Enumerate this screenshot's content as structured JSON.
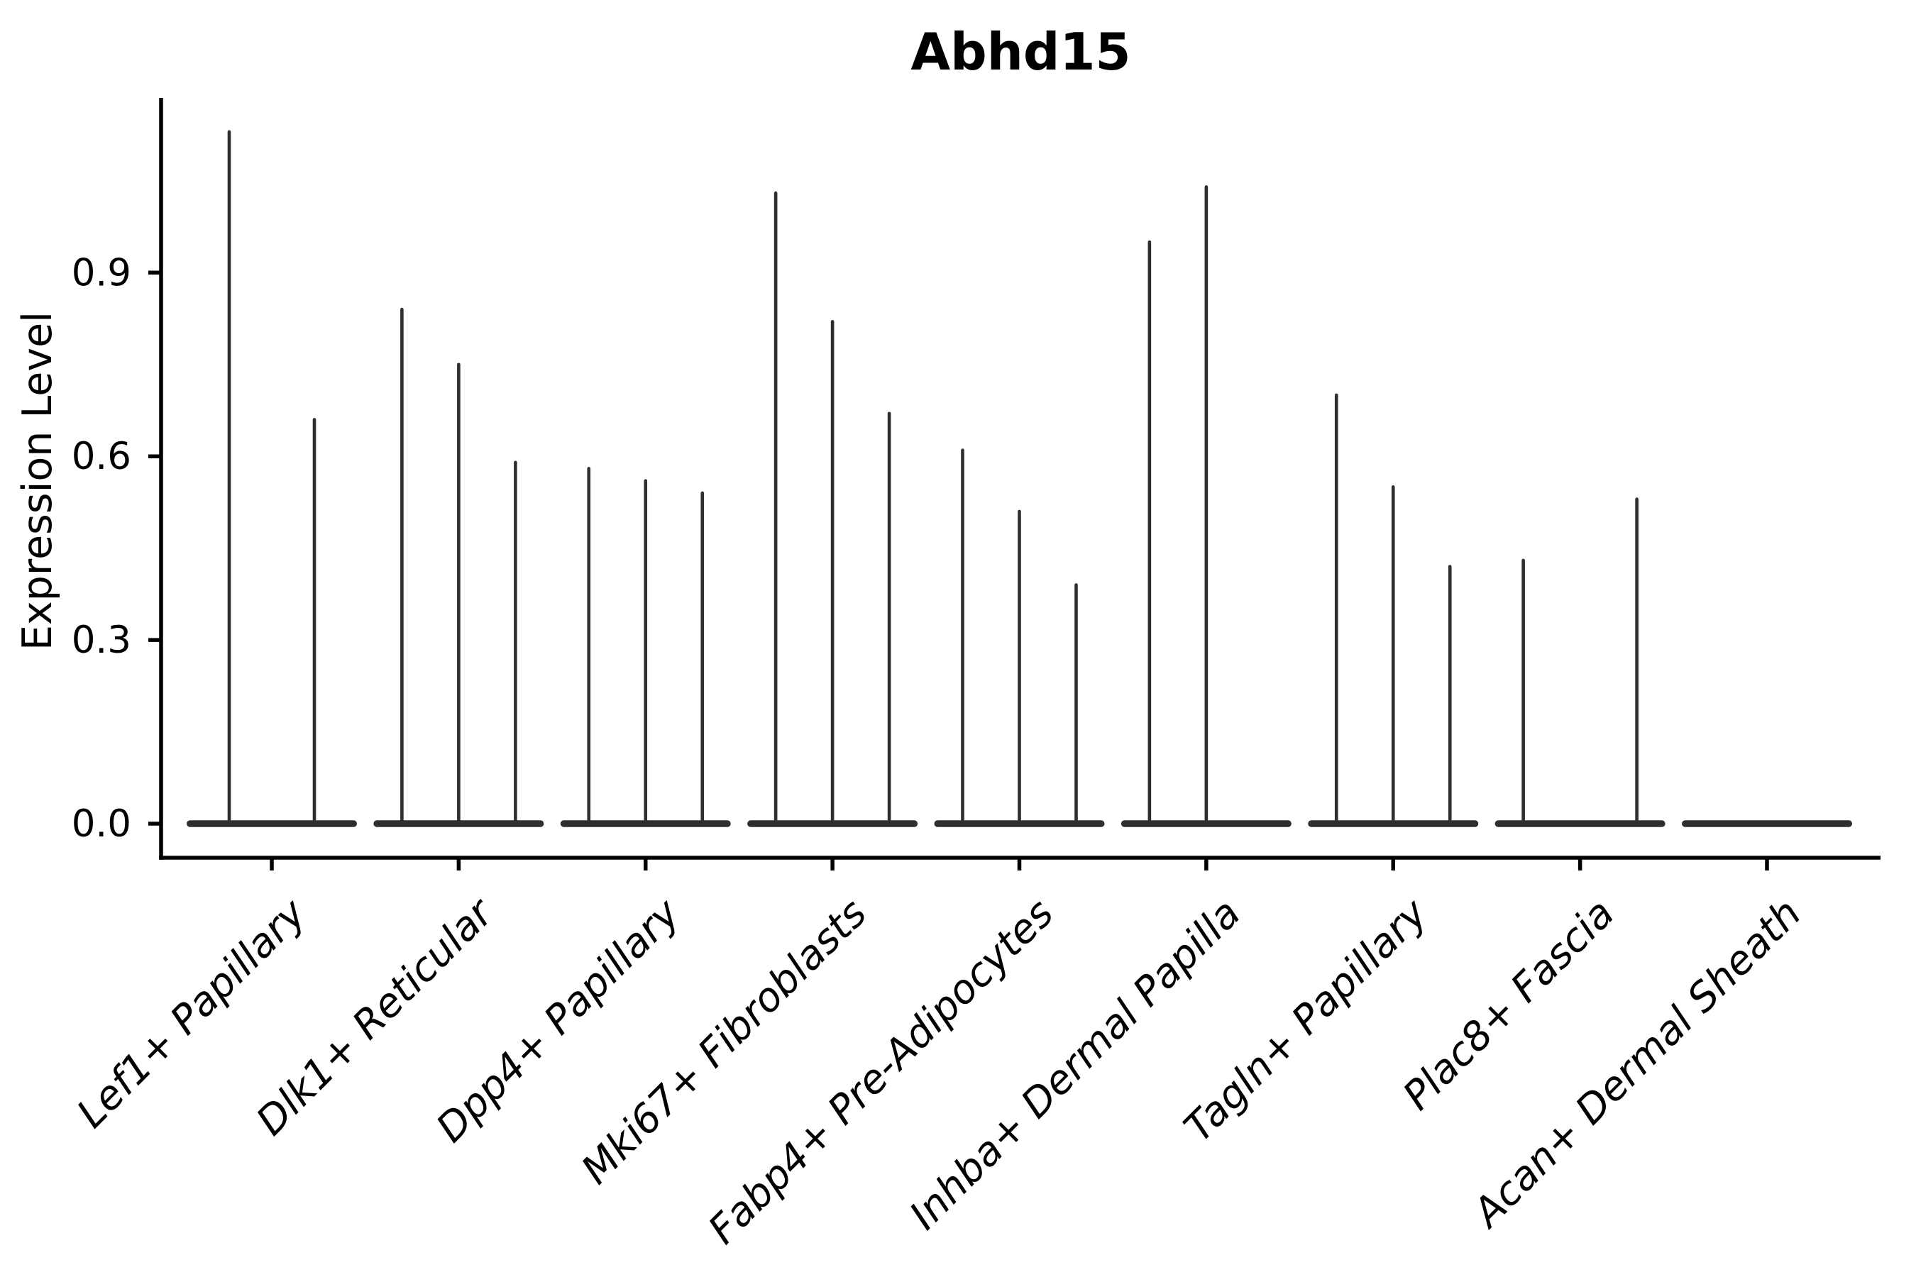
{
  "chart_data": {
    "type": "violin",
    "title": "Abhd15",
    "ylabel": "Expression Level",
    "xlabel": "",
    "grid": false,
    "legend_position": "none",
    "ytick_labels": [
      "0.0",
      "0.3",
      "0.6",
      "0.9"
    ],
    "ytick_values": [
      0.0,
      0.3,
      0.6,
      0.9
    ],
    "ylim": [
      -0.056,
      1.182
    ],
    "categories": [
      "Lef1+ Papillary",
      "Dlk1+ Reticular",
      "Dpp4+ Papillary",
      "Mki67+ Fibroblasts",
      "Fabp4+ Pre-Adipocytes",
      "Inhba+ Dermal Papilla",
      "Tagln+ Papillary",
      "Plac8+ Fascia",
      "Acan+ Dermal Sheath"
    ],
    "violins": [
      {
        "category": "Lef1+ Papillary",
        "spike_maxima": [
          1.13,
          0.66
        ]
      },
      {
        "category": "Dlk1+ Reticular",
        "spike_maxima": [
          0.84,
          0.75,
          0.59
        ]
      },
      {
        "category": "Dpp4+ Papillary",
        "spike_maxima": [
          0.58,
          0.56,
          0.54
        ]
      },
      {
        "category": "Mki67+ Fibroblasts",
        "spike_maxima": [
          1.03,
          0.82,
          0.67
        ]
      },
      {
        "category": "Fabp4+ Pre-Adipocytes",
        "spike_maxima": [
          0.61,
          0.51,
          0.39
        ]
      },
      {
        "category": "Inhba+ Dermal Papilla",
        "spike_maxima": [
          0.95,
          1.04,
          0
        ]
      },
      {
        "category": "Tagln+ Papillary",
        "spike_maxima": [
          0.7,
          0.55,
          0.42
        ]
      },
      {
        "category": "Plac8+ Fascia",
        "spike_maxima": [
          0.43,
          0,
          0.53
        ]
      },
      {
        "category": "Acan+ Dermal Sheath",
        "spike_maxima": [
          0,
          0,
          0
        ]
      }
    ],
    "violin_note": "Each violin is a needle shape: wide flat density bar at expression 0 plus a thin spike rising to the listed maximum; 0 means a completely flat violin.",
    "colors": {
      "violin": "#2f2f2f",
      "axis": "#000000",
      "text": "#000000",
      "background": "#ffffff"
    }
  }
}
